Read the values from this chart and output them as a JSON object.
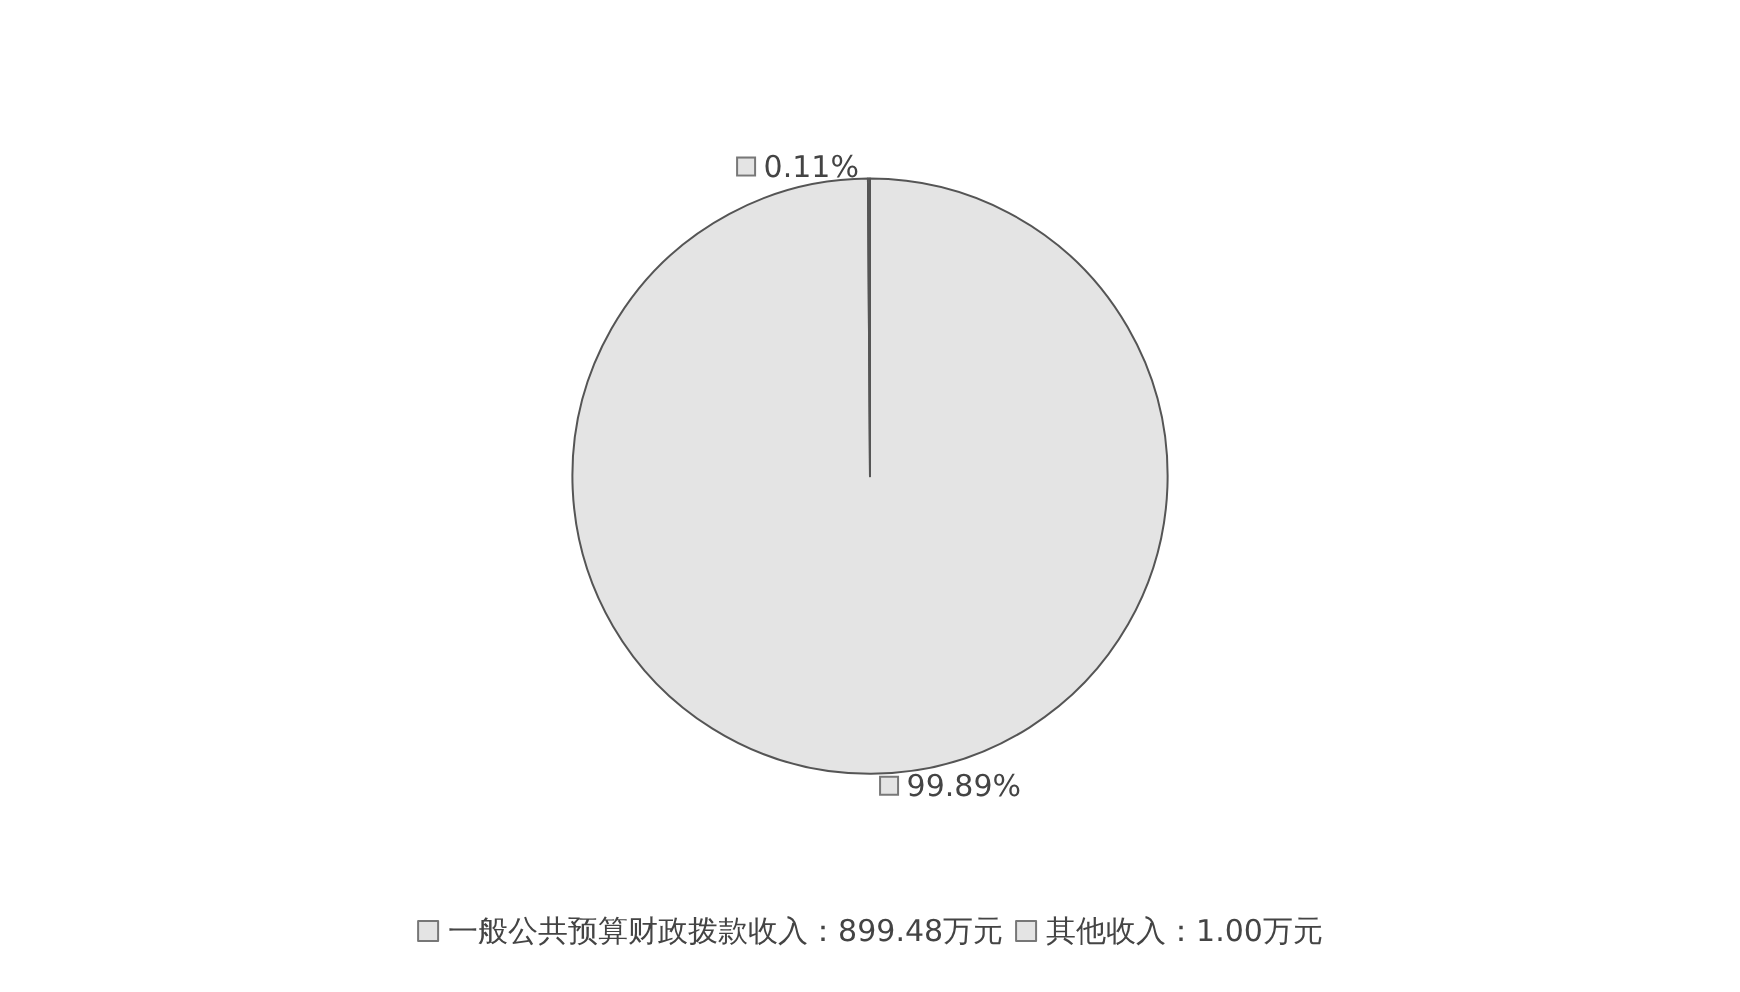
{
  "chart_data": {
    "type": "pie",
    "categories": [
      "一般公共预算财政拨款收入：899.48万元",
      "其他收入：1.00万元"
    ],
    "values": [
      99.89,
      0.11
    ],
    "colors": [
      "#e4e4e4",
      "#e4e4e4"
    ],
    "value_labels": [
      "99.89%",
      "0.11%"
    ],
    "legend": "bottom"
  }
}
